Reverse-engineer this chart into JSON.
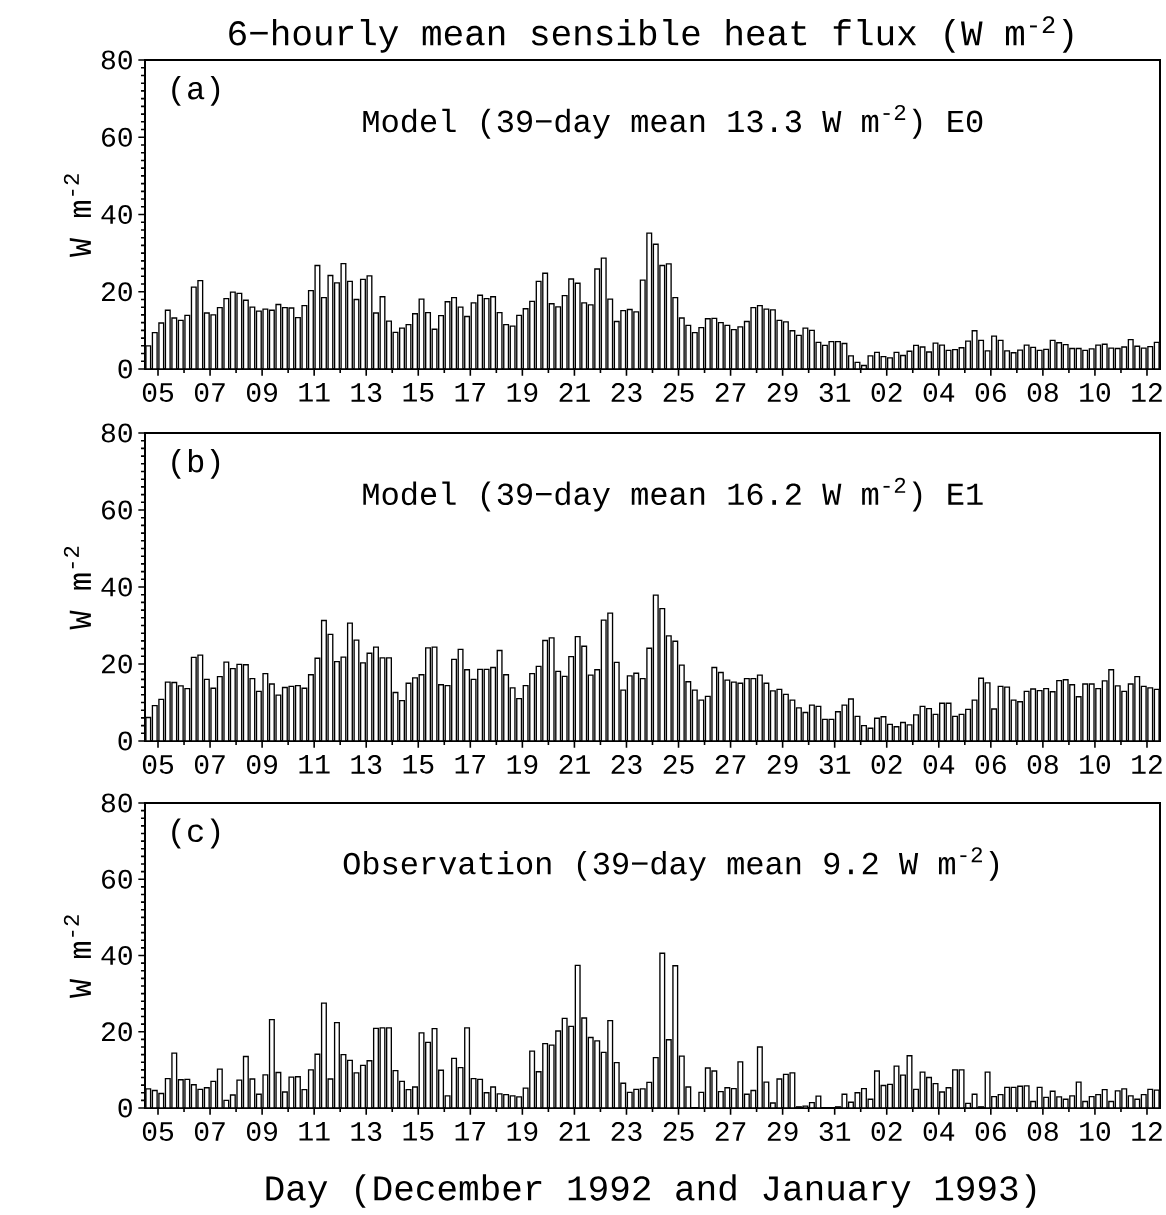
{
  "chart_data": [
    {
      "type": "bar",
      "title": "6−hourly mean sensible heat flux (W m$^{-2}$)",
      "ylabel": "W m$^{-2}$",
      "annotations": [
        "(a)",
        "Model (39−day mean 13.3 W m$^{-2}$) E0"
      ],
      "color": "#ffffff",
      "xlim": [
        "1992-12-05T00:00",
        "1993-01-13T00:00"
      ],
      "ylim": [
        0,
        80
      ],
      "xticks": [
        {
          "value": "1992-12-05T12:00",
          "label": "05"
        },
        {
          "value": "1992-12-06T12:00",
          "label": null
        },
        {
          "value": "1992-12-07T12:00",
          "label": "07"
        },
        {
          "value": "1992-12-08T12:00",
          "label": null
        },
        {
          "value": "1992-12-09T12:00",
          "label": "09"
        },
        {
          "value": "1992-12-10T12:00",
          "label": null
        },
        {
          "value": "1992-12-11T12:00",
          "label": "11"
        },
        {
          "value": "1992-12-12T12:00",
          "label": null
        },
        {
          "value": "1992-12-13T12:00",
          "label": "13"
        },
        {
          "value": "1992-12-14T12:00",
          "label": null
        },
        {
          "value": "1992-12-15T12:00",
          "label": "15"
        },
        {
          "value": "1992-12-16T12:00",
          "label": null
        },
        {
          "value": "1992-12-17T12:00",
          "label": "17"
        },
        {
          "value": "1992-12-18T12:00",
          "label": null
        },
        {
          "value": "1992-12-19T12:00",
          "label": "19"
        },
        {
          "value": "1992-12-20T12:00",
          "label": null
        },
        {
          "value": "1992-12-21T12:00",
          "label": "21"
        },
        {
          "value": "1992-12-22T12:00",
          "label": null
        },
        {
          "value": "1992-12-23T12:00",
          "label": "23"
        },
        {
          "value": "1992-12-24T12:00",
          "label": null
        },
        {
          "value": "1992-12-25T12:00",
          "label": "25"
        },
        {
          "value": "1992-12-26T12:00",
          "label": null
        },
        {
          "value": "1992-12-27T12:00",
          "label": "27"
        },
        {
          "value": "1992-12-28T12:00",
          "label": null
        },
        {
          "value": "1992-12-29T12:00",
          "label": "29"
        },
        {
          "value": "1992-12-30T12:00",
          "label": null
        },
        {
          "value": "1992-12-31T12:00",
          "label": "31"
        },
        {
          "value": "1993-01-01T12:00",
          "label": null
        },
        {
          "value": "1993-01-02T12:00",
          "label": "02"
        },
        {
          "value": "1993-01-03T12:00",
          "label": null
        },
        {
          "value": "1993-01-04T12:00",
          "label": "04"
        },
        {
          "value": "1993-01-05T12:00",
          "label": null
        },
        {
          "value": "1993-01-06T12:00",
          "label": "06"
        },
        {
          "value": "1993-01-07T12:00",
          "label": null
        },
        {
          "value": "1993-01-08T12:00",
          "label": "08"
        },
        {
          "value": "1993-01-09T12:00",
          "label": null
        },
        {
          "value": "1993-01-10T12:00",
          "label": "10"
        },
        {
          "value": "1993-01-11T12:00",
          "label": null
        },
        {
          "value": "1993-01-12T12:00",
          "label": "12"
        }
      ],
      "yticks": [
        0,
        {
          "value": 2,
          "label": null
        },
        {
          "value": 4,
          "label": null
        },
        {
          "value": 6,
          "label": null
        },
        {
          "value": 8,
          "label": null
        },
        {
          "value": 10,
          "label": null
        },
        {
          "value": 12,
          "label": null
        },
        {
          "value": 14,
          "label": null
        },
        {
          "value": 16,
          "label": null
        },
        {
          "value": 18,
          "label": null
        },
        20,
        {
          "value": 22,
          "label": null
        },
        {
          "value": 24,
          "label": null
        },
        {
          "value": 26,
          "label": null
        },
        {
          "value": 28,
          "label": null
        },
        {
          "value": 30,
          "label": null
        },
        {
          "value": 32,
          "label": null
        },
        {
          "value": 34,
          "label": null
        },
        {
          "value": 36,
          "label": null
        },
        {
          "value": 38,
          "label": null
        },
        40,
        {
          "value": 42,
          "label": null
        },
        {
          "value": 44,
          "label": null
        },
        {
          "value": 46,
          "label": null
        },
        {
          "value": 48,
          "label": null
        },
        {
          "value": 50,
          "label": null
        },
        {
          "value": 52,
          "label": null
        },
        {
          "value": 54,
          "label": null
        },
        {
          "value": 56,
          "label": null
        },
        {
          "value": 58,
          "label": null
        },
        60,
        {
          "value": 62,
          "label": null
        },
        {
          "value": 64,
          "label": null
        },
        {
          "value": 66,
          "label": null
        },
        {
          "value": 68,
          "label": null
        },
        {
          "value": 70,
          "label": null
        },
        {
          "value": 72,
          "label": null
        },
        {
          "value": 74,
          "label": null
        },
        {
          "value": 76,
          "label": null
        },
        {
          "value": 78,
          "label": null
        },
        80
      ],
      "x": [
        "1992-12-05T03:00",
        "1992-12-05T09:00",
        "1992-12-05T15:00",
        "1992-12-05T21:00",
        "1992-12-06T03:00",
        "1992-12-06T09:00",
        "1992-12-06T15:00",
        "1992-12-06T21:00",
        "1992-12-07T03:00",
        "1992-12-07T09:00",
        "1992-12-07T15:00",
        "1992-12-07T21:00",
        "1992-12-08T03:00",
        "1992-12-08T09:00",
        "1992-12-08T15:00",
        "1992-12-08T21:00",
        "1992-12-09T03:00",
        "1992-12-09T09:00",
        "1992-12-09T15:00",
        "1992-12-09T21:00",
        "1992-12-10T03:00",
        "1992-12-10T09:00",
        "1992-12-10T15:00",
        "1992-12-10T21:00",
        "1992-12-11T03:00",
        "1992-12-11T09:00",
        "1992-12-11T15:00",
        "1992-12-11T21:00",
        "1992-12-12T03:00",
        "1992-12-12T09:00",
        "1992-12-12T15:00",
        "1992-12-12T21:00",
        "1992-12-13T03:00",
        "1992-12-13T09:00",
        "1992-12-13T15:00",
        "1992-12-13T21:00",
        "1992-12-14T03:00",
        "1992-12-14T09:00",
        "1992-12-14T15:00",
        "1992-12-14T21:00",
        "1992-12-15T03:00",
        "1992-12-15T09:00",
        "1992-12-15T15:00",
        "1992-12-15T21:00",
        "1992-12-16T03:00",
        "1992-12-16T09:00",
        "1992-12-16T15:00",
        "1992-12-16T21:00",
        "1992-12-17T03:00",
        "1992-12-17T09:00",
        "1992-12-17T15:00",
        "1992-12-17T21:00",
        "1992-12-18T03:00",
        "1992-12-18T09:00",
        "1992-12-18T15:00",
        "1992-12-18T21:00",
        "1992-12-19T03:00",
        "1992-12-19T09:00",
        "1992-12-19T15:00",
        "1992-12-19T21:00",
        "1992-12-20T03:00",
        "1992-12-20T09:00",
        "1992-12-20T15:00",
        "1992-12-20T21:00",
        "1992-12-21T03:00",
        "1992-12-21T09:00",
        "1992-12-21T15:00",
        "1992-12-21T21:00",
        "1992-12-22T03:00",
        "1992-12-22T09:00",
        "1992-12-22T15:00",
        "1992-12-22T21:00",
        "1992-12-23T03:00",
        "1992-12-23T09:00",
        "1992-12-23T15:00",
        "1992-12-23T21:00",
        "1992-12-24T03:00",
        "1992-12-24T09:00",
        "1992-12-24T15:00",
        "1992-12-24T21:00",
        "1992-12-25T03:00",
        "1992-12-25T09:00",
        "1992-12-25T15:00",
        "1992-12-25T21:00",
        "1992-12-26T03:00",
        "1992-12-26T09:00",
        "1992-12-26T15:00",
        "1992-12-26T21:00",
        "1992-12-27T03:00",
        "1992-12-27T09:00",
        "1992-12-27T15:00",
        "1992-12-27T21:00",
        "1992-12-28T03:00",
        "1992-12-28T09:00",
        "1992-12-28T15:00",
        "1992-12-28T21:00",
        "1992-12-29T03:00",
        "1992-12-29T09:00",
        "1992-12-29T15:00",
        "1992-12-29T21:00",
        "1992-12-30T03:00",
        "1992-12-30T09:00",
        "1992-12-30T15:00",
        "1992-12-30T21:00",
        "1992-12-31T03:00",
        "1992-12-31T09:00",
        "1992-12-31T15:00",
        "1992-12-31T21:00",
        "1993-01-01T03:00",
        "1993-01-01T09:00",
        "1993-01-01T15:00",
        "1993-01-01T21:00",
        "1993-01-02T03:00",
        "1993-01-02T09:00",
        "1993-01-02T15:00",
        "1993-01-02T21:00",
        "1993-01-03T03:00",
        "1993-01-03T09:00",
        "1993-01-03T15:00",
        "1993-01-03T21:00",
        "1993-01-04T03:00",
        "1993-01-04T09:00",
        "1993-01-04T15:00",
        "1993-01-04T21:00",
        "1993-01-05T03:00",
        "1993-01-05T09:00",
        "1993-01-05T15:00",
        "1993-01-05T21:00",
        "1993-01-06T03:00",
        "1993-01-06T09:00",
        "1993-01-06T15:00",
        "1993-01-06T21:00",
        "1993-01-07T03:00",
        "1993-01-07T09:00",
        "1993-01-07T15:00",
        "1993-01-07T21:00",
        "1993-01-08T03:00",
        "1993-01-08T09:00",
        "1993-01-08T15:00",
        "1993-01-08T21:00",
        "1993-01-09T03:00",
        "1993-01-09T09:00",
        "1993-01-09T15:00",
        "1993-01-09T21:00",
        "1993-01-10T03:00",
        "1993-01-10T09:00",
        "1993-01-10T15:00",
        "1993-01-10T21:00",
        "1993-01-11T03:00",
        "1993-01-11T09:00",
        "1993-01-11T15:00",
        "1993-01-11T21:00",
        "1993-01-12T03:00",
        "1993-01-12T09:00",
        "1993-01-12T15:00",
        "1993-01-12T21:00"
      ],
      "values": [
        6,
        9.4,
        11.9,
        15.2,
        13.2,
        12.6,
        13.9,
        21.2,
        22.9,
        14.5,
        14.0,
        15.9,
        18.2,
        19.9,
        19.6,
        17.8,
        16.0,
        15.0,
        15.5,
        15.2,
        16.7,
        15.9,
        15.8,
        13.3,
        16.4,
        20.3,
        26.8,
        18.5,
        24.2,
        22.3,
        27.3,
        22.7,
        18.0,
        23.2,
        24.1,
        14.5,
        18.7,
        12.4,
        9.5,
        10.6,
        11.5,
        14.3,
        18.1,
        14.6,
        10.3,
        13.8,
        17.4,
        18.5,
        16.0,
        13.6,
        17.1,
        19.1,
        18.2,
        18.7,
        14.6,
        11.5,
        11.1,
        13.9,
        15.6,
        17.5,
        22.7,
        24.8,
        16.9,
        16.1,
        19.0,
        23.3,
        22.2,
        17.1,
        16.6,
        25.9,
        28.7,
        18.1,
        12.3,
        15.1,
        15.4,
        14.8,
        23.0,
        35.2,
        32.3,
        26.8,
        27.2,
        18.5,
        13.2,
        11.3,
        9.4,
        10.7,
        13.0,
        13.1,
        12.0,
        11.3,
        10.2,
        10.9,
        12.3,
        15.9,
        16.4,
        15.5,
        15.3,
        12.6,
        12.2,
        9.9,
        8.7,
        10.6,
        10.0,
        6.9,
        6.1,
        7.1,
        7.1,
        6.6,
        3.4,
        1.7,
        0.9,
        3.4,
        4.3,
        3.2,
        2.9,
        4.3,
        3.5,
        4.6,
        6.1,
        5.7,
        4.4,
        6.7,
        6.2,
        4.8,
        5.0,
        5.5,
        7.2,
        9.9,
        7.4,
        4.7,
        8.5,
        7.4,
        4.7,
        4.2,
        4.9,
        6.2,
        5.6,
        4.8,
        5.1,
        7.4,
        6.8,
        6.3,
        5.3,
        5.3,
        4.8,
        5.2,
        6.2,
        6.4,
        5.4,
        5.3,
        5.7,
        7.6,
        5.9,
        5.4,
        5.8,
        6.9
      ]
    },
    {
      "type": "bar",
      "ylabel": "W m$^{-2}$",
      "annotations": [
        "(b)",
        "Model (39−day mean 16.2 W m$^{-2}$) E1"
      ],
      "color": "#ffffff",
      "xlim": [
        "1992-12-05T00:00",
        "1993-01-13T00:00"
      ],
      "ylim": [
        0,
        80
      ],
      "xticks": [
        {
          "value": "1992-12-05T12:00",
          "label": "05"
        },
        {
          "value": "1992-12-06T12:00",
          "label": null
        },
        {
          "value": "1992-12-07T12:00",
          "label": "07"
        },
        {
          "value": "1992-12-08T12:00",
          "label": null
        },
        {
          "value": "1992-12-09T12:00",
          "label": "09"
        },
        {
          "value": "1992-12-10T12:00",
          "label": null
        },
        {
          "value": "1992-12-11T12:00",
          "label": "11"
        },
        {
          "value": "1992-12-12T12:00",
          "label": null
        },
        {
          "value": "1992-12-13T12:00",
          "label": "13"
        },
        {
          "value": "1992-12-14T12:00",
          "label": null
        },
        {
          "value": "1992-12-15T12:00",
          "label": "15"
        },
        {
          "value": "1992-12-16T12:00",
          "label": null
        },
        {
          "value": "1992-12-17T12:00",
          "label": "17"
        },
        {
          "value": "1992-12-18T12:00",
          "label": null
        },
        {
          "value": "1992-12-19T12:00",
          "label": "19"
        },
        {
          "value": "1992-12-20T12:00",
          "label": null
        },
        {
          "value": "1992-12-21T12:00",
          "label": "21"
        },
        {
          "value": "1992-12-22T12:00",
          "label": null
        },
        {
          "value": "1992-12-23T12:00",
          "label": "23"
        },
        {
          "value": "1992-12-24T12:00",
          "label": null
        },
        {
          "value": "1992-12-25T12:00",
          "label": "25"
        },
        {
          "value": "1992-12-26T12:00",
          "label": null
        },
        {
          "value": "1992-12-27T12:00",
          "label": "27"
        },
        {
          "value": "1992-12-28T12:00",
          "label": null
        },
        {
          "value": "1992-12-29T12:00",
          "label": "29"
        },
        {
          "value": "1992-12-30T12:00",
          "label": null
        },
        {
          "value": "1992-12-31T12:00",
          "label": "31"
        },
        {
          "value": "1993-01-01T12:00",
          "label": null
        },
        {
          "value": "1993-01-02T12:00",
          "label": "02"
        },
        {
          "value": "1993-01-03T12:00",
          "label": null
        },
        {
          "value": "1993-01-04T12:00",
          "label": "04"
        },
        {
          "value": "1993-01-05T12:00",
          "label": null
        },
        {
          "value": "1993-01-06T12:00",
          "label": "06"
        },
        {
          "value": "1993-01-07T12:00",
          "label": null
        },
        {
          "value": "1993-01-08T12:00",
          "label": "08"
        },
        {
          "value": "1993-01-09T12:00",
          "label": null
        },
        {
          "value": "1993-01-10T12:00",
          "label": "10"
        },
        {
          "value": "1993-01-11T12:00",
          "label": null
        },
        {
          "value": "1993-01-12T12:00",
          "label": "12"
        }
      ],
      "yticks": [
        0,
        {
          "value": 2,
          "label": null
        },
        {
          "value": 4,
          "label": null
        },
        {
          "value": 6,
          "label": null
        },
        {
          "value": 8,
          "label": null
        },
        {
          "value": 10,
          "label": null
        },
        {
          "value": 12,
          "label": null
        },
        {
          "value": 14,
          "label": null
        },
        {
          "value": 16,
          "label": null
        },
        {
          "value": 18,
          "label": null
        },
        20,
        {
          "value": 22,
          "label": null
        },
        {
          "value": 24,
          "label": null
        },
        {
          "value": 26,
          "label": null
        },
        {
          "value": 28,
          "label": null
        },
        {
          "value": 30,
          "label": null
        },
        {
          "value": 32,
          "label": null
        },
        {
          "value": 34,
          "label": null
        },
        {
          "value": 36,
          "label": null
        },
        {
          "value": 38,
          "label": null
        },
        40,
        {
          "value": 42,
          "label": null
        },
        {
          "value": 44,
          "label": null
        },
        {
          "value": 46,
          "label": null
        },
        {
          "value": 48,
          "label": null
        },
        {
          "value": 50,
          "label": null
        },
        {
          "value": 52,
          "label": null
        },
        {
          "value": 54,
          "label": null
        },
        {
          "value": 56,
          "label": null
        },
        {
          "value": 58,
          "label": null
        },
        60,
        {
          "value": 62,
          "label": null
        },
        {
          "value": 64,
          "label": null
        },
        {
          "value": 66,
          "label": null
        },
        {
          "value": 68,
          "label": null
        },
        {
          "value": 70,
          "label": null
        },
        {
          "value": 72,
          "label": null
        },
        {
          "value": 74,
          "label": null
        },
        {
          "value": 76,
          "label": null
        },
        {
          "value": 78,
          "label": null
        },
        80
      ],
      "x": [
        "1992-12-05T03:00",
        "1992-12-05T09:00",
        "1992-12-05T15:00",
        "1992-12-05T21:00",
        "1992-12-06T03:00",
        "1992-12-06T09:00",
        "1992-12-06T15:00",
        "1992-12-06T21:00",
        "1992-12-07T03:00",
        "1992-12-07T09:00",
        "1992-12-07T15:00",
        "1992-12-07T21:00",
        "1992-12-08T03:00",
        "1992-12-08T09:00",
        "1992-12-08T15:00",
        "1992-12-08T21:00",
        "1992-12-09T03:00",
        "1992-12-09T09:00",
        "1992-12-09T15:00",
        "1992-12-09T21:00",
        "1992-12-10T03:00",
        "1992-12-10T09:00",
        "1992-12-10T15:00",
        "1992-12-10T21:00",
        "1992-12-11T03:00",
        "1992-12-11T09:00",
        "1992-12-11T15:00",
        "1992-12-11T21:00",
        "1992-12-12T03:00",
        "1992-12-12T09:00",
        "1992-12-12T15:00",
        "1992-12-12T21:00",
        "1992-12-13T03:00",
        "1992-12-13T09:00",
        "1992-12-13T15:00",
        "1992-12-13T21:00",
        "1992-12-14T03:00",
        "1992-12-14T09:00",
        "1992-12-14T15:00",
        "1992-12-14T21:00",
        "1992-12-15T03:00",
        "1992-12-15T09:00",
        "1992-12-15T15:00",
        "1992-12-15T21:00",
        "1992-12-16T03:00",
        "1992-12-16T09:00",
        "1992-12-16T15:00",
        "1992-12-16T21:00",
        "1992-12-17T03:00",
        "1992-12-17T09:00",
        "1992-12-17T15:00",
        "1992-12-17T21:00",
        "1992-12-18T03:00",
        "1992-12-18T09:00",
        "1992-12-18T15:00",
        "1992-12-18T21:00",
        "1992-12-19T03:00",
        "1992-12-19T09:00",
        "1992-12-19T15:00",
        "1992-12-19T21:00",
        "1992-12-20T03:00",
        "1992-12-20T09:00",
        "1992-12-20T15:00",
        "1992-12-20T21:00",
        "1992-12-21T03:00",
        "1992-12-21T09:00",
        "1992-12-21T15:00",
        "1992-12-21T21:00",
        "1992-12-22T03:00",
        "1992-12-22T09:00",
        "1992-12-22T15:00",
        "1992-12-22T21:00",
        "1992-12-23T03:00",
        "1992-12-23T09:00",
        "1992-12-23T15:00",
        "1992-12-23T21:00",
        "1992-12-24T03:00",
        "1992-12-24T09:00",
        "1992-12-24T15:00",
        "1992-12-24T21:00",
        "1992-12-25T03:00",
        "1992-12-25T09:00",
        "1992-12-25T15:00",
        "1992-12-25T21:00",
        "1992-12-26T03:00",
        "1992-12-26T09:00",
        "1992-12-26T15:00",
        "1992-12-26T21:00",
        "1992-12-27T03:00",
        "1992-12-27T09:00",
        "1992-12-27T15:00",
        "1992-12-27T21:00",
        "1992-12-28T03:00",
        "1992-12-28T09:00",
        "1992-12-28T15:00",
        "1992-12-28T21:00",
        "1992-12-29T03:00",
        "1992-12-29T09:00",
        "1992-12-29T15:00",
        "1992-12-29T21:00",
        "1992-12-30T03:00",
        "1992-12-30T09:00",
        "1992-12-30T15:00",
        "1992-12-30T21:00",
        "1992-12-31T03:00",
        "1992-12-31T09:00",
        "1992-12-31T15:00",
        "1992-12-31T21:00",
        "1993-01-01T03:00",
        "1993-01-01T09:00",
        "1993-01-01T15:00",
        "1993-01-01T21:00",
        "1993-01-02T03:00",
        "1993-01-02T09:00",
        "1993-01-02T15:00",
        "1993-01-02T21:00",
        "1993-01-03T03:00",
        "1993-01-03T09:00",
        "1993-01-03T15:00",
        "1993-01-03T21:00",
        "1993-01-04T03:00",
        "1993-01-04T09:00",
        "1993-01-04T15:00",
        "1993-01-04T21:00",
        "1993-01-05T03:00",
        "1993-01-05T09:00",
        "1993-01-05T15:00",
        "1993-01-05T21:00",
        "1993-01-06T03:00",
        "1993-01-06T09:00",
        "1993-01-06T15:00",
        "1993-01-06T21:00",
        "1993-01-07T03:00",
        "1993-01-07T09:00",
        "1993-01-07T15:00",
        "1993-01-07T21:00",
        "1993-01-08T03:00",
        "1993-01-08T09:00",
        "1993-01-08T15:00",
        "1993-01-08T21:00",
        "1993-01-09T03:00",
        "1993-01-09T09:00",
        "1993-01-09T15:00",
        "1993-01-09T21:00",
        "1993-01-10T03:00",
        "1993-01-10T09:00",
        "1993-01-10T15:00",
        "1993-01-10T21:00",
        "1993-01-11T03:00",
        "1993-01-11T09:00",
        "1993-01-11T15:00",
        "1993-01-11T21:00",
        "1993-01-12T03:00",
        "1993-01-12T09:00",
        "1993-01-12T15:00",
        "1993-01-12T21:00"
      ],
      "values": [
        6.1,
        9.2,
        10.8,
        15.3,
        15.2,
        14.3,
        13.6,
        21.7,
        22.3,
        16.0,
        13.7,
        16.7,
        20.5,
        18.8,
        19.9,
        19.8,
        16.2,
        12.9,
        17.5,
        14.8,
        11.9,
        13.9,
        14.2,
        14.4,
        13.7,
        17.2,
        21.5,
        31.3,
        27.7,
        20.6,
        21.8,
        30.6,
        26.2,
        20.3,
        22.8,
        24.4,
        21.6,
        21.6,
        12.6,
        10.5,
        15.0,
        16.4,
        17.2,
        24.2,
        24.4,
        14.6,
        14.4,
        21.2,
        23.8,
        18.5,
        16.0,
        18.6,
        18.6,
        19.1,
        23.5,
        17.2,
        13.8,
        11.0,
        14.4,
        17.5,
        19.4,
        26.1,
        26.8,
        18.1,
        16.8,
        21.9,
        27.1,
        24.6,
        17.1,
        18.5,
        31.4,
        33.2,
        20.4,
        13.2,
        16.9,
        17.6,
        16.2,
        24.1,
        37.9,
        34.4,
        27.3,
        25.9,
        19.7,
        15.4,
        13.2,
        10.6,
        11.6,
        19.1,
        17.8,
        15.8,
        15.3,
        15.0,
        16.2,
        16.2,
        17.1,
        15.0,
        13.0,
        13.4,
        12.1,
        10.6,
        8.6,
        7.4,
        9.3,
        9.0,
        5.6,
        5.6,
        7.6,
        9.3,
        10.9,
        6.4,
        4.0,
        3.3,
        5.9,
        6.3,
        4.3,
        3.7,
        4.8,
        4.2,
        6.8,
        9.0,
        8.4,
        6.9,
        9.8,
        9.8,
        6.4,
        6.9,
        8.2,
        10.6,
        16.3,
        15.1,
        8.3,
        14.2,
        14.0,
        10.6,
        10.2,
        12.9,
        13.5,
        13.1,
        13.6,
        12.8,
        15.7,
        15.9,
        14.6,
        11.5,
        14.8,
        14.8,
        13.6,
        15.6,
        18.5,
        14.3,
        12.9,
        14.8,
        16.7,
        14.2,
        13.8,
        13.4
      ]
    },
    {
      "type": "bar",
      "ylabel": "W m$^{-2}$",
      "xlabel": "Day (December 1992 and January 1993)",
      "annotations": [
        "(c)",
        "Observation (39−day mean 9.2 W m$^{-2}$)"
      ],
      "color": "#ffffff",
      "xlim": [
        "1992-12-05T00:00",
        "1993-01-13T00:00"
      ],
      "ylim": [
        0,
        80
      ],
      "xticks": [
        {
          "value": "1992-12-05T12:00",
          "label": "05"
        },
        {
          "value": "1992-12-06T12:00",
          "label": null
        },
        {
          "value": "1992-12-07T12:00",
          "label": "07"
        },
        {
          "value": "1992-12-08T12:00",
          "label": null
        },
        {
          "value": "1992-12-09T12:00",
          "label": "09"
        },
        {
          "value": "1992-12-10T12:00",
          "label": null
        },
        {
          "value": "1992-12-11T12:00",
          "label": "11"
        },
        {
          "value": "1992-12-12T12:00",
          "label": null
        },
        {
          "value": "1992-12-13T12:00",
          "label": "13"
        },
        {
          "value": "1992-12-14T12:00",
          "label": null
        },
        {
          "value": "1992-12-15T12:00",
          "label": "15"
        },
        {
          "value": "1992-12-16T12:00",
          "label": null
        },
        {
          "value": "1992-12-17T12:00",
          "label": "17"
        },
        {
          "value": "1992-12-18T12:00",
          "label": null
        },
        {
          "value": "1992-12-19T12:00",
          "label": "19"
        },
        {
          "value": "1992-12-20T12:00",
          "label": null
        },
        {
          "value": "1992-12-21T12:00",
          "label": "21"
        },
        {
          "value": "1992-12-22T12:00",
          "label": null
        },
        {
          "value": "1992-12-23T12:00",
          "label": "23"
        },
        {
          "value": "1992-12-24T12:00",
          "label": null
        },
        {
          "value": "1992-12-25T12:00",
          "label": "25"
        },
        {
          "value": "1992-12-26T12:00",
          "label": null
        },
        {
          "value": "1992-12-27T12:00",
          "label": "27"
        },
        {
          "value": "1992-12-28T12:00",
          "label": null
        },
        {
          "value": "1992-12-29T12:00",
          "label": "29"
        },
        {
          "value": "1992-12-30T12:00",
          "label": null
        },
        {
          "value": "1992-12-31T12:00",
          "label": "31"
        },
        {
          "value": "1993-01-01T12:00",
          "label": null
        },
        {
          "value": "1993-01-02T12:00",
          "label": "02"
        },
        {
          "value": "1993-01-03T12:00",
          "label": null
        },
        {
          "value": "1993-01-04T12:00",
          "label": "04"
        },
        {
          "value": "1993-01-05T12:00",
          "label": null
        },
        {
          "value": "1993-01-06T12:00",
          "label": "06"
        },
        {
          "value": "1993-01-07T12:00",
          "label": null
        },
        {
          "value": "1993-01-08T12:00",
          "label": "08"
        },
        {
          "value": "1993-01-09T12:00",
          "label": null
        },
        {
          "value": "1993-01-10T12:00",
          "label": "10"
        },
        {
          "value": "1993-01-11T12:00",
          "label": null
        },
        {
          "value": "1993-01-12T12:00",
          "label": "12"
        }
      ],
      "yticks": [
        0,
        {
          "value": 2,
          "label": null
        },
        {
          "value": 4,
          "label": null
        },
        {
          "value": 6,
          "label": null
        },
        {
          "value": 8,
          "label": null
        },
        {
          "value": 10,
          "label": null
        },
        {
          "value": 12,
          "label": null
        },
        {
          "value": 14,
          "label": null
        },
        {
          "value": 16,
          "label": null
        },
        {
          "value": 18,
          "label": null
        },
        20,
        {
          "value": 22,
          "label": null
        },
        {
          "value": 24,
          "label": null
        },
        {
          "value": 26,
          "label": null
        },
        {
          "value": 28,
          "label": null
        },
        {
          "value": 30,
          "label": null
        },
        {
          "value": 32,
          "label": null
        },
        {
          "value": 34,
          "label": null
        },
        {
          "value": 36,
          "label": null
        },
        {
          "value": 38,
          "label": null
        },
        40,
        {
          "value": 42,
          "label": null
        },
        {
          "value": 44,
          "label": null
        },
        {
          "value": 46,
          "label": null
        },
        {
          "value": 48,
          "label": null
        },
        {
          "value": 50,
          "label": null
        },
        {
          "value": 52,
          "label": null
        },
        {
          "value": 54,
          "label": null
        },
        {
          "value": 56,
          "label": null
        },
        {
          "value": 58,
          "label": null
        },
        60,
        {
          "value": 62,
          "label": null
        },
        {
          "value": 64,
          "label": null
        },
        {
          "value": 66,
          "label": null
        },
        {
          "value": 68,
          "label": null
        },
        {
          "value": 70,
          "label": null
        },
        {
          "value": 72,
          "label": null
        },
        {
          "value": 74,
          "label": null
        },
        {
          "value": 76,
          "label": null
        },
        {
          "value": 78,
          "label": null
        },
        80
      ],
      "x": [
        "1992-12-05T03:00",
        "1992-12-05T09:00",
        "1992-12-05T15:00",
        "1992-12-05T21:00",
        "1992-12-06T03:00",
        "1992-12-06T09:00",
        "1992-12-06T15:00",
        "1992-12-06T21:00",
        "1992-12-07T03:00",
        "1992-12-07T09:00",
        "1992-12-07T15:00",
        "1992-12-07T21:00",
        "1992-12-08T03:00",
        "1992-12-08T09:00",
        "1992-12-08T15:00",
        "1992-12-08T21:00",
        "1992-12-09T03:00",
        "1992-12-09T09:00",
        "1992-12-09T15:00",
        "1992-12-09T21:00",
        "1992-12-10T03:00",
        "1992-12-10T09:00",
        "1992-12-10T15:00",
        "1992-12-10T21:00",
        "1992-12-11T03:00",
        "1992-12-11T09:00",
        "1992-12-11T15:00",
        "1992-12-11T21:00",
        "1992-12-12T03:00",
        "1992-12-12T09:00",
        "1992-12-12T15:00",
        "1992-12-12T21:00",
        "1992-12-13T03:00",
        "1992-12-13T09:00",
        "1992-12-13T15:00",
        "1992-12-13T21:00",
        "1992-12-14T03:00",
        "1992-12-14T09:00",
        "1992-12-14T15:00",
        "1992-12-14T21:00",
        "1992-12-15T03:00",
        "1992-12-15T09:00",
        "1992-12-15T15:00",
        "1992-12-15T21:00",
        "1992-12-16T03:00",
        "1992-12-16T09:00",
        "1992-12-16T15:00",
        "1992-12-16T21:00",
        "1992-12-17T03:00",
        "1992-12-17T09:00",
        "1992-12-17T15:00",
        "1992-12-17T21:00",
        "1992-12-18T03:00",
        "1992-12-18T09:00",
        "1992-12-18T15:00",
        "1992-12-18T21:00",
        "1992-12-19T03:00",
        "1992-12-19T09:00",
        "1992-12-19T15:00",
        "1992-12-19T21:00",
        "1992-12-20T03:00",
        "1992-12-20T09:00",
        "1992-12-20T15:00",
        "1992-12-20T21:00",
        "1992-12-21T03:00",
        "1992-12-21T09:00",
        "1992-12-21T15:00",
        "1992-12-21T21:00",
        "1992-12-22T03:00",
        "1992-12-22T09:00",
        "1992-12-22T15:00",
        "1992-12-22T21:00",
        "1992-12-23T03:00",
        "1992-12-23T09:00",
        "1992-12-23T15:00",
        "1992-12-23T21:00",
        "1992-12-24T03:00",
        "1992-12-24T09:00",
        "1992-12-24T15:00",
        "1992-12-24T21:00",
        "1992-12-25T03:00",
        "1992-12-25T09:00",
        "1992-12-25T15:00",
        "1992-12-25T21:00",
        "1992-12-26T03:00",
        "1992-12-26T09:00",
        "1992-12-26T15:00",
        "1992-12-26T21:00",
        "1992-12-27T03:00",
        "1992-12-27T09:00",
        "1992-12-27T15:00",
        "1992-12-27T21:00",
        "1992-12-28T03:00",
        "1992-12-28T09:00",
        "1992-12-28T15:00",
        "1992-12-28T21:00",
        "1992-12-29T03:00",
        "1992-12-29T09:00",
        "1992-12-29T15:00",
        "1992-12-29T21:00",
        "1992-12-30T03:00",
        "1992-12-30T09:00",
        "1992-12-30T15:00",
        "1992-12-30T21:00",
        "1992-12-31T03:00",
        "1992-12-31T09:00",
        "1992-12-31T15:00",
        "1992-12-31T21:00",
        "1993-01-01T03:00",
        "1993-01-01T09:00",
        "1993-01-01T15:00",
        "1993-01-01T21:00",
        "1993-01-02T03:00",
        "1993-01-02T09:00",
        "1993-01-02T15:00",
        "1993-01-02T21:00",
        "1993-01-03T03:00",
        "1993-01-03T09:00",
        "1993-01-03T15:00",
        "1993-01-03T21:00",
        "1993-01-04T03:00",
        "1993-01-04T09:00",
        "1993-01-04T15:00",
        "1993-01-04T21:00",
        "1993-01-05T03:00",
        "1993-01-05T09:00",
        "1993-01-05T15:00",
        "1993-01-05T21:00",
        "1993-01-06T03:00",
        "1993-01-06T09:00",
        "1993-01-06T15:00",
        "1993-01-06T21:00",
        "1993-01-07T03:00",
        "1993-01-07T09:00",
        "1993-01-07T15:00",
        "1993-01-07T21:00",
        "1993-01-08T03:00",
        "1993-01-08T09:00",
        "1993-01-08T15:00",
        "1993-01-08T21:00",
        "1993-01-09T03:00",
        "1993-01-09T09:00",
        "1993-01-09T15:00",
        "1993-01-09T21:00",
        "1993-01-10T03:00",
        "1993-01-10T09:00",
        "1993-01-10T15:00",
        "1993-01-10T21:00",
        "1993-01-11T03:00",
        "1993-01-11T09:00",
        "1993-01-11T15:00",
        "1993-01-11T21:00",
        "1993-01-12T03:00",
        "1993-01-12T09:00",
        "1993-01-12T15:00",
        "1993-01-12T21:00"
      ],
      "values": [
        5.0,
        4.6,
        3.8,
        7.7,
        14.4,
        7.4,
        7.5,
        6.1,
        4.9,
        5.3,
        7.0,
        10.2,
        2.0,
        3.4,
        7.3,
        13.5,
        7.6,
        3.6,
        8.7,
        23.2,
        9.3,
        4.2,
        8.1,
        8.2,
        4.8,
        10.0,
        14.1,
        27.5,
        7.6,
        22.4,
        14.0,
        12.5,
        9.2,
        11.2,
        12.4,
        20.9,
        21.0,
        21.0,
        9.8,
        7.0,
        4.8,
        5.5,
        19.7,
        17.2,
        20.8,
        9.9,
        3.2,
        13.0,
        10.6,
        21.0,
        7.7,
        7.5,
        4.0,
        5.5,
        3.7,
        3.5,
        3.2,
        2.9,
        5.2,
        14.9,
        9.5,
        16.9,
        16.5,
        20.2,
        23.5,
        21.4,
        37.4,
        23.6,
        18.5,
        17.6,
        14.6,
        22.9,
        11.9,
        6.5,
        4.1,
        4.9,
        5.0,
        6.7,
        13.2,
        40.6,
        17.9,
        37.3,
        13.6,
        5.5,
        0,
        4.1,
        10.5,
        9.7,
        4.3,
        5.3,
        5.1,
        12.1,
        3.6,
        4.6,
        16.0,
        6.8,
        1.3,
        7.6,
        8.8,
        9.2,
        0.3,
        0.5,
        1.4,
        3.1,
        0,
        0,
        0.3,
        3.6,
        1.5,
        4.0,
        5.1,
        2.3,
        9.7,
        5.9,
        6.2,
        11.0,
        8.6,
        13.7,
        4.9,
        9.4,
        8.0,
        6.4,
        4.2,
        5.3,
        10.0,
        10.0,
        1.2,
        3.6,
        0.3,
        9.4,
        3.0,
        3.5,
        5.4,
        5.4,
        5.7,
        5.8,
        1.7,
        5.4,
        2.8,
        4.4,
        2.9,
        2.3,
        3.2,
        6.8,
        1.7,
        3.0,
        3.5,
        4.8,
        1.7,
        4.5,
        5.0,
        3.2,
        2.3,
        3.5,
        4.9,
        4.7
      ]
    }
  ]
}
